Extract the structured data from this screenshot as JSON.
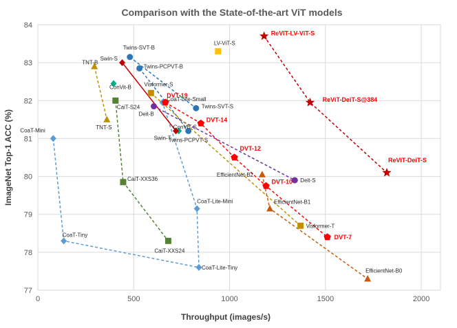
{
  "chart_data": {
    "type": "scatter",
    "title": "Comparison with the State-of-the-art ViT models",
    "xlabel": "Throughput (images/s)",
    "ylabel": "ImageNet Top-1 ACC (%)",
    "xlim": [
      0,
      2100
    ],
    "ylim": [
      77,
      84
    ],
    "xticks": [
      0,
      500,
      1000,
      1500,
      2000
    ],
    "yticks": [
      77,
      78,
      79,
      80,
      81,
      82,
      83,
      84
    ],
    "grid": "both",
    "series": [
      {
        "name": "TNT",
        "color": "#c09000",
        "marker": "triangle",
        "line": "dashed",
        "points": [
          {
            "x": 295,
            "y": 82.9,
            "label": "TNT-B"
          },
          {
            "x": 360,
            "y": 81.5,
            "label": "TNT-S"
          }
        ]
      },
      {
        "name": "CaiT",
        "color": "#548235",
        "marker": "square",
        "line": "dashed",
        "points": [
          {
            "x": 405,
            "y": 82.0,
            "label": "CaiT-S24"
          },
          {
            "x": 445,
            "y": 79.85,
            "label": "CaiT-XXS36"
          },
          {
            "x": 680,
            "y": 78.3,
            "label": "CaiT-XXS24"
          }
        ]
      },
      {
        "name": "CoaT",
        "color": "#5b9bd5",
        "marker": "diamond",
        "line": "dashed",
        "points": [
          {
            "x": 80,
            "y": 81.0,
            "label": "CoaT-Mini"
          },
          {
            "x": 135,
            "y": 78.3,
            "label": "CoaT-Tiny"
          },
          {
            "x": 840,
            "y": 77.6,
            "label": "CoaT-Lite-Tiny"
          },
          {
            "x": 830,
            "y": 79.15,
            "label": "CoaT-Lite-Mini"
          },
          {
            "x": 650,
            "y": 81.95,
            "label": "CoaT-Lite-Small"
          }
        ]
      },
      {
        "name": "ConViT",
        "color": "#00b08c",
        "marker": "diamond",
        "line": "none",
        "points": [
          {
            "x": 395,
            "y": 82.45,
            "label": "ConVit-B"
          },
          {
            "x": 735,
            "y": 81.2,
            "label": "ConViT-S"
          }
        ]
      },
      {
        "name": "Twins-SVT",
        "color": "#2e75b6",
        "marker": "circle",
        "line": "dashed",
        "points": [
          {
            "x": 480,
            "y": 83.15,
            "label": "Twins-SVT-B"
          },
          {
            "x": 825,
            "y": 81.8,
            "label": "Twins-SVT-S"
          }
        ]
      },
      {
        "name": "Twins-PCPVT",
        "color": "#2e75b6",
        "marker": "circle",
        "line": "dashed",
        "points": [
          {
            "x": 530,
            "y": 82.85,
            "label": "Twins-PCPVT-B"
          },
          {
            "x": 785,
            "y": 81.2,
            "label": "Twins-PCPVT-S"
          }
        ]
      },
      {
        "name": "Swin",
        "color": "#c00000",
        "marker": "diamond",
        "line": "solid",
        "points": [
          {
            "x": 440,
            "y": 83.0,
            "label": "Swin-S"
          },
          {
            "x": 720,
            "y": 81.2,
            "label": "Swin-T"
          }
        ]
      },
      {
        "name": "DeiT",
        "color": "#7030a0",
        "marker": "circle",
        "line": "dashed",
        "points": [
          {
            "x": 605,
            "y": 81.85,
            "label": "Deit-B"
          },
          {
            "x": 1340,
            "y": 79.9,
            "label": "Deit-S"
          }
        ]
      },
      {
        "name": "Visformer",
        "color": "#bf8f00",
        "marker": "square",
        "line": "dashed",
        "points": [
          {
            "x": 590,
            "y": 82.2,
            "label": "Visformer-S"
          },
          {
            "x": 1370,
            "y": 78.7,
            "label": "Visformer-T"
          }
        ]
      },
      {
        "name": "EfficientNet",
        "color": "#c55a11",
        "marker": "triangle",
        "line": "dashed",
        "points": [
          {
            "x": 1170,
            "y": 80.05,
            "label": "EfficientNet-B2"
          },
          {
            "x": 1210,
            "y": 79.15,
            "label": "EfficientNet-B1"
          },
          {
            "x": 1720,
            "y": 77.3,
            "label": "EfficientNet-B0"
          }
        ]
      },
      {
        "name": "DVT",
        "color": "#ff0000",
        "marker": "pentagon",
        "line": "dashed",
        "points": [
          {
            "x": 665,
            "y": 81.95,
            "label": "DVT-19"
          },
          {
            "x": 850,
            "y": 81.4,
            "label": "DVT-14"
          },
          {
            "x": 1025,
            "y": 80.5,
            "label": "DVT-12"
          },
          {
            "x": 1190,
            "y": 79.75,
            "label": "DVT-10"
          },
          {
            "x": 1510,
            "y": 78.4,
            "label": "DVT-7"
          }
        ]
      },
      {
        "name": "ReViT",
        "color": "#c00000",
        "marker": "star",
        "line": "dashed",
        "points": [
          {
            "x": 1180,
            "y": 83.7,
            "label": "ReViT-LV-ViT-S"
          },
          {
            "x": 1420,
            "y": 81.95,
            "label": "ReViT-DeiT-S@384"
          },
          {
            "x": 1820,
            "y": 80.1,
            "label": "ReViT-DeiT-S"
          }
        ]
      },
      {
        "name": "LV-ViT",
        "color": "#ffc000",
        "marker": "square",
        "line": "none",
        "points": [
          {
            "x": 940,
            "y": 83.3,
            "label": "LV-ViT-S"
          }
        ]
      }
    ],
    "labels": [
      {
        "text": "TNT-B",
        "series": 0,
        "point": 0,
        "dx": -18,
        "dy": -3
      },
      {
        "text": "TNT-S",
        "series": 0,
        "point": 1,
        "dx": -16,
        "dy": 14
      },
      {
        "text": "CaiT-S24",
        "series": 1,
        "point": 0,
        "dx": 2,
        "dy": 12
      },
      {
        "text": "CaiT-XXS36",
        "series": 1,
        "point": 1,
        "dx": 6,
        "dy": -2
      },
      {
        "text": "CaiT-XXS24",
        "series": 1,
        "point": 2,
        "dx": -20,
        "dy": 17
      },
      {
        "text": "CoaT-Mini",
        "series": 2,
        "point": 0,
        "dx": -48,
        "dy": -9
      },
      {
        "text": "CoaT-Tiny",
        "series": 2,
        "point": 1,
        "dx": -2,
        "dy": -6
      },
      {
        "text": "CoaT-Lite-Tiny",
        "series": 2,
        "point": 2,
        "dx": 4,
        "dy": 3
      },
      {
        "text": "CoaT-Lite-Mini",
        "series": 2,
        "point": 3,
        "dx": 0,
        "dy": -8
      },
      {
        "text": "CoaT-Lite-Small",
        "series": 2,
        "point": 4,
        "dx": 6,
        "dy": -2
      },
      {
        "text": "ConVit-B",
        "series": 3,
        "point": 0,
        "dx": -6,
        "dy": 8
      },
      {
        "text": "ConViT-S",
        "series": 3,
        "point": 1,
        "dx": -8,
        "dy": -3
      },
      {
        "text": "Twins-SVT-B",
        "series": 4,
        "point": 0,
        "dx": -10,
        "dy": -11
      },
      {
        "text": "Twins-SVT-S",
        "series": 4,
        "point": 1,
        "dx": 8,
        "dy": 0
      },
      {
        "text": "Twins-PCPVT-B",
        "series": 5,
        "point": 0,
        "dx": 6,
        "dy": 0
      },
      {
        "text": "Twins-PCPVT-S",
        "series": 5,
        "point": 1,
        "dx": -29,
        "dy": 16
      },
      {
        "text": "Swin-S",
        "series": 6,
        "point": 0,
        "dx": -32,
        "dy": -3
      },
      {
        "text": "Swin-T",
        "series": 6,
        "point": 1,
        "dx": -32,
        "dy": 13
      },
      {
        "text": "Deit-B",
        "series": 7,
        "point": 0,
        "dx": -22,
        "dy": 14
      },
      {
        "text": "Deit-S",
        "series": 7,
        "point": 1,
        "dx": 8,
        "dy": 3
      },
      {
        "text": "Visformer-S",
        "series": 8,
        "point": 0,
        "dx": -10,
        "dy": -10
      },
      {
        "text": "Visformer-T",
        "series": 8,
        "point": 1,
        "dx": 8,
        "dy": 3
      },
      {
        "text": "EfficientNet-B2",
        "series": 9,
        "point": 0,
        "dx": -66,
        "dy": 3
      },
      {
        "text": "EfficientNet-B1",
        "series": 9,
        "point": 1,
        "dx": 6,
        "dy": -7
      },
      {
        "text": "EfficientNet-B0",
        "series": 9,
        "point": 2,
        "dx": -3,
        "dy": -9
      },
      {
        "text": "DVT-19",
        "series": 10,
        "point": 0,
        "dx": 2,
        "dy": -7,
        "red": true
      },
      {
        "text": "DVT-14",
        "series": 10,
        "point": 1,
        "dx": 8,
        "dy": -2,
        "red": true
      },
      {
        "text": "DVT-12",
        "series": 10,
        "point": 2,
        "dx": 8,
        "dy": -10,
        "red": true
      },
      {
        "text": "DVT-10",
        "series": 10,
        "point": 3,
        "dx": 8,
        "dy": -3,
        "red": true
      },
      {
        "text": "DVT-7",
        "series": 10,
        "point": 4,
        "dx": 10,
        "dy": 3,
        "red": true
      },
      {
        "text": "ReViT-LV-ViT-S",
        "series": 11,
        "point": 0,
        "dx": 10,
        "dy": -1,
        "red": true
      },
      {
        "text": "ReViT-DeiT-S@384",
        "series": 11,
        "point": 1,
        "dx": 18,
        "dy": -1,
        "red": true
      },
      {
        "text": "ReViT-DeiT-S",
        "series": 11,
        "point": 2,
        "dx": 2,
        "dy": -15,
        "red": true
      },
      {
        "text": "LV-ViT-S",
        "series": 12,
        "point": 0,
        "dx": -6,
        "dy": -9
      }
    ]
  }
}
